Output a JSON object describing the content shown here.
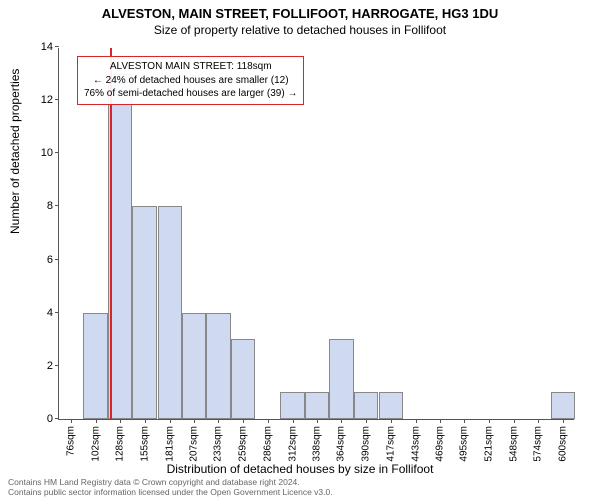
{
  "title_main": "ALVESTON, MAIN STREET, FOLLIFOOT, HARROGATE, HG3 1DU",
  "title_sub": "Size of property relative to detached houses in Follifoot",
  "ylabel": "Number of detached properties",
  "xlabel": "Distribution of detached houses by size in Follifoot",
  "annotation": {
    "line1": "ALVESTON MAIN STREET: 118sqm",
    "line2": "← 24% of detached houses are smaller (12)",
    "line3": "76% of semi-detached houses are larger (39) →"
  },
  "footer": {
    "l1": "Contains HM Land Registry data © Crown copyright and database right 2024.",
    "l2": "Contains public sector information licensed under the Open Government Licence v3.0."
  },
  "chart": {
    "type": "histogram",
    "bar_color": "#cfd9ef",
    "bar_border": "#888888",
    "marker_color": "#d8252a",
    "annotation_border": "#d8252a",
    "background_color": "#ffffff",
    "axis_color": "#555555",
    "text_color": "#000000",
    "ylim": [
      0,
      14
    ],
    "ytick_step": 2,
    "yticks": [
      0,
      2,
      4,
      6,
      8,
      10,
      12,
      14
    ],
    "xlim": [
      63,
      613
    ],
    "xticks": [
      76,
      102,
      128,
      155,
      181,
      207,
      233,
      259,
      286,
      312,
      338,
      364,
      390,
      417,
      443,
      469,
      495,
      521,
      548,
      574,
      600
    ],
    "xtick_suffix": "sqm",
    "bar_width_data": 26,
    "bins": [
      {
        "x": 63,
        "count": 0
      },
      {
        "x": 89,
        "count": 4
      },
      {
        "x": 115,
        "count": 13
      },
      {
        "x": 141,
        "count": 8
      },
      {
        "x": 168,
        "count": 8
      },
      {
        "x": 194,
        "count": 4
      },
      {
        "x": 220,
        "count": 4
      },
      {
        "x": 246,
        "count": 3
      },
      {
        "x": 273,
        "count": 0
      },
      {
        "x": 299,
        "count": 1
      },
      {
        "x": 325,
        "count": 1
      },
      {
        "x": 351,
        "count": 3
      },
      {
        "x": 377,
        "count": 1
      },
      {
        "x": 404,
        "count": 1
      },
      {
        "x": 430,
        "count": 0
      },
      {
        "x": 456,
        "count": 0
      },
      {
        "x": 482,
        "count": 0
      },
      {
        "x": 508,
        "count": 0
      },
      {
        "x": 535,
        "count": 0
      },
      {
        "x": 561,
        "count": 0
      },
      {
        "x": 587,
        "count": 1
      }
    ],
    "marker_x": 118,
    "title_fontsize": 13,
    "subtitle_fontsize": 12,
    "label_fontsize": 12,
    "tick_fontsize_x": 10,
    "tick_fontsize_y": 11,
    "annotation_fontsize": 10,
    "footer_fontsize": 8.5
  }
}
